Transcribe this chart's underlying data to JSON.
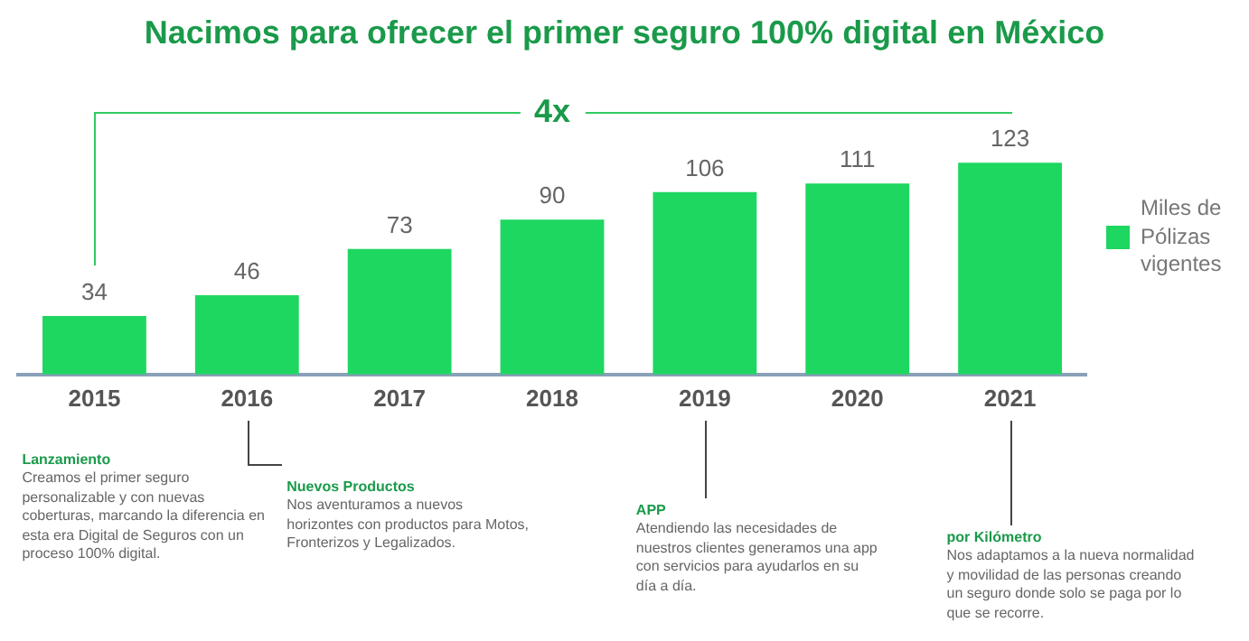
{
  "chart_data": {
    "type": "bar",
    "title": "Nacimos para ofrecer el primer seguro 100% digital en México",
    "categories": [
      "2015",
      "2016",
      "2017",
      "2018",
      "2019",
      "2020",
      "2021"
    ],
    "series": [
      {
        "name": "Miles de Pólizas vigentes",
        "color": "#1ed760",
        "values": [
          34,
          46,
          73,
          90,
          106,
          111,
          123
        ]
      }
    ],
    "data_labels": true,
    "grid": false,
    "legend": "right",
    "annotations": [
      "4x",
      "Lanzamiento\nCreamos el primer seguro personalizable y con nuevas coberturas, marcando la diferencia en esta era Digital de Seguros con un proceso 100% digital.",
      "Nuevos Productos\nNos aventuramos a nuevos horizontes con productos para Motos, Fronterizos y Legalizados.",
      "APP\nAtendiendo las necesidades de nuestros clientes generamos una app con servicios para ayudarlos en su día a día.",
      "por Kilómetro\nNos adaptamos a la nueva normalidad y movilidad de las personas creando un seguro donde solo se paga por lo que se recorre."
    ]
  }
}
